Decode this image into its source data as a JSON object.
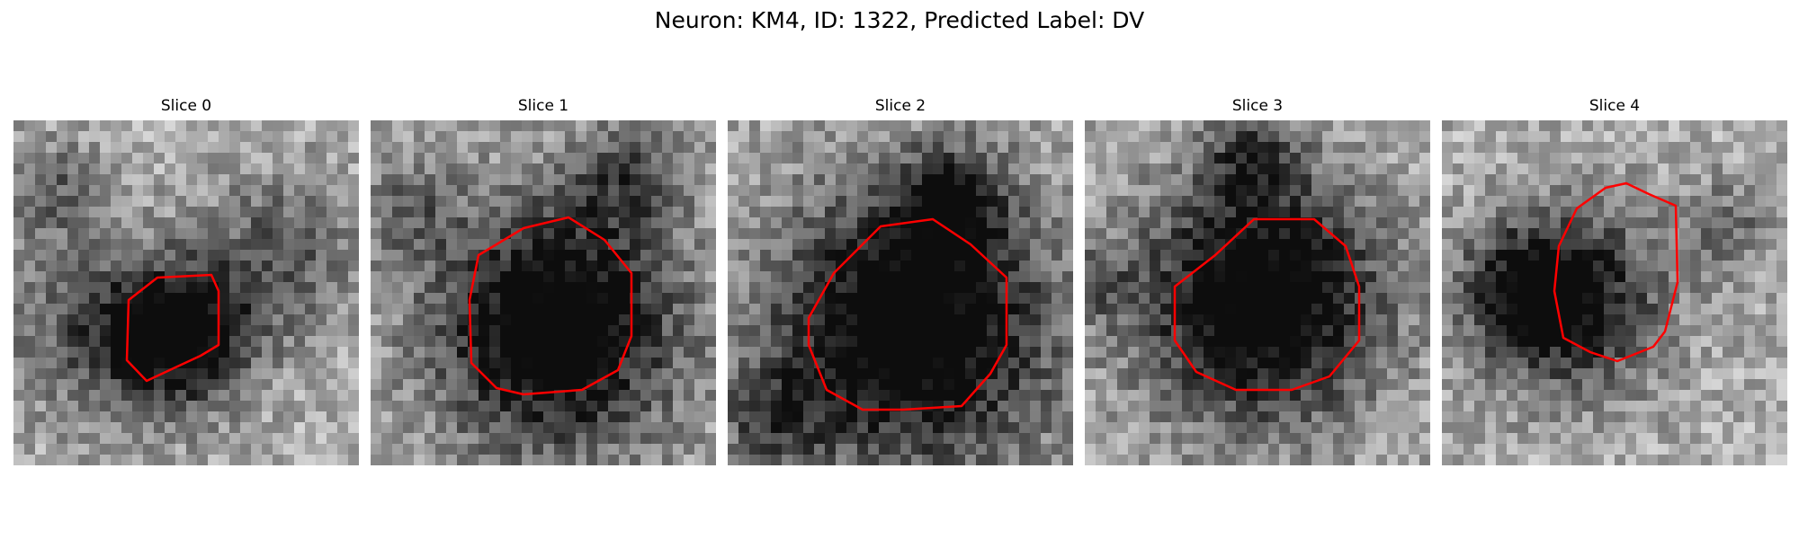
{
  "figure": {
    "title": "Neuron: KM4, ID: 1322, Predicted Label: DV"
  },
  "panels": [
    {
      "title": "Slice 0"
    },
    {
      "title": "Slice 1"
    },
    {
      "title": "Slice 2"
    },
    {
      "title": "Slice 3"
    },
    {
      "title": "Slice 4"
    }
  ],
  "colors": {
    "outline": "#ff0000",
    "background": "#ffffff"
  }
}
